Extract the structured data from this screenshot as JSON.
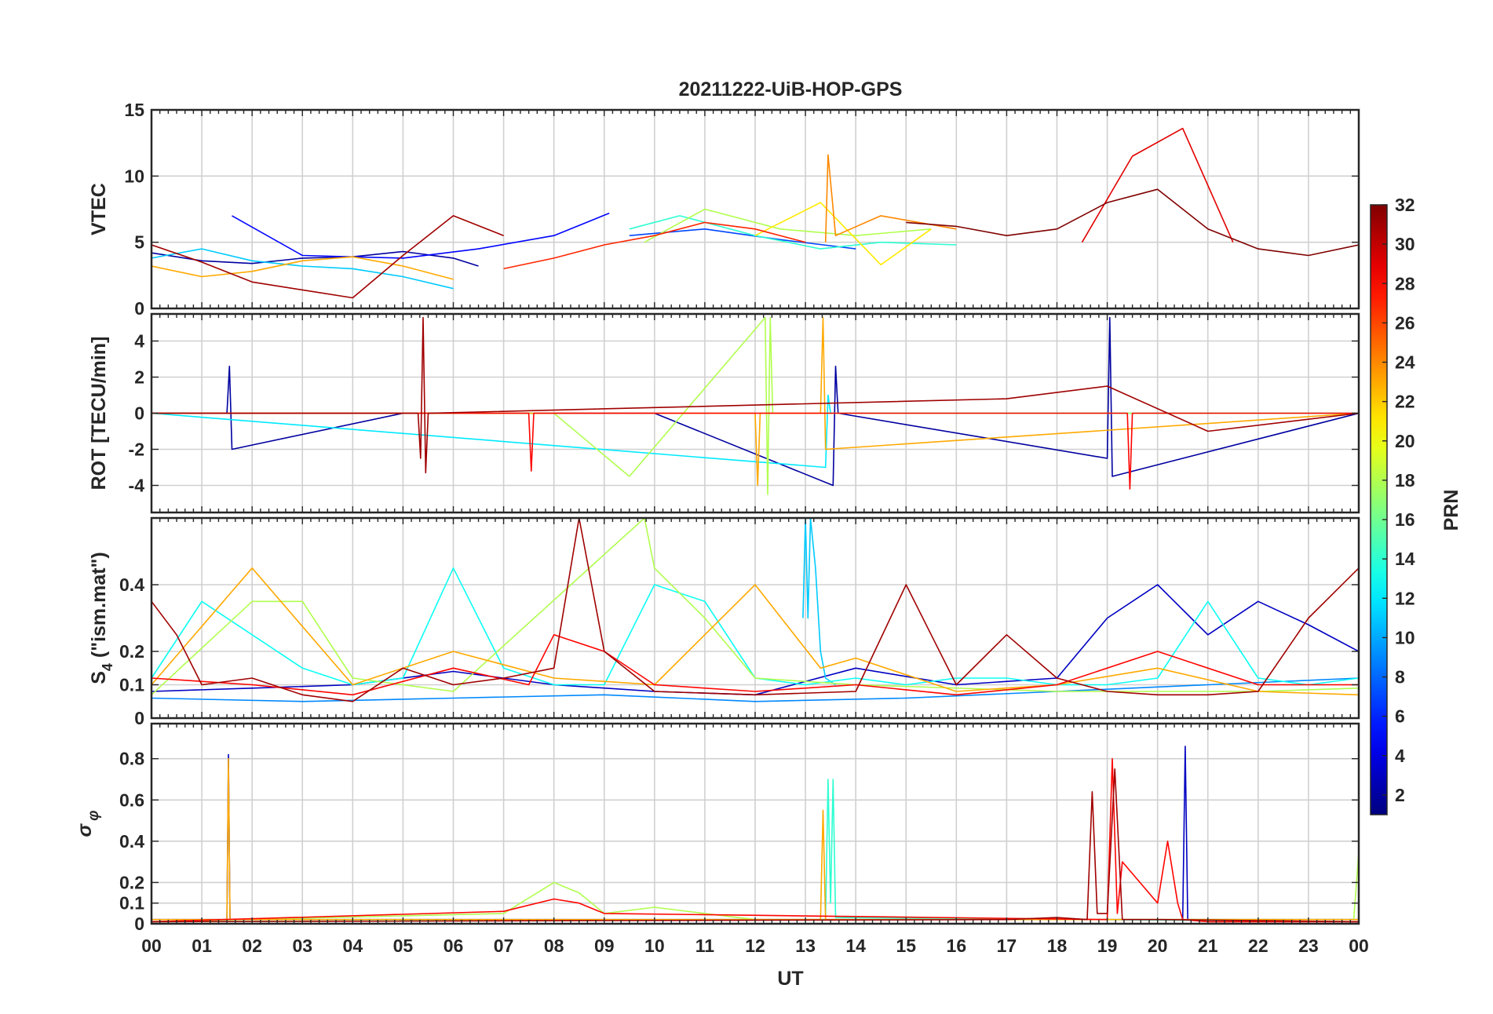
{
  "figure_title": "20211222-UiB-HOP-GPS",
  "x_axis": {
    "label": "UT",
    "range": [
      0,
      24
    ],
    "ticks": [
      0,
      1,
      2,
      3,
      4,
      5,
      6,
      7,
      8,
      9,
      10,
      11,
      12,
      13,
      14,
      15,
      16,
      17,
      18,
      19,
      20,
      21,
      22,
      23,
      24
    ],
    "tick_labels": [
      "00",
      "01",
      "02",
      "03",
      "04",
      "05",
      "06",
      "07",
      "08",
      "09",
      "10",
      "11",
      "12",
      "13",
      "14",
      "15",
      "16",
      "17",
      "18",
      "19",
      "20",
      "21",
      "22",
      "23",
      "00"
    ]
  },
  "colorbar": {
    "label": "PRN",
    "range": [
      1,
      32
    ],
    "ticks": [
      2,
      4,
      6,
      8,
      10,
      12,
      14,
      16,
      18,
      20,
      22,
      24,
      26,
      28,
      30,
      32
    ],
    "tick_labels": [
      "2",
      "4",
      "6",
      "8",
      "10",
      "12",
      "14",
      "16",
      "18",
      "20",
      "22",
      "24",
      "26",
      "28",
      "30",
      "32"
    ],
    "colormap": "jet"
  },
  "chart_data": [
    {
      "type": "line",
      "id": "vtec",
      "ylabel": "VTEC",
      "ylim": [
        0,
        15
      ],
      "yticks": [
        0,
        5,
        10,
        15
      ],
      "ytick_labels": [
        "0",
        "5",
        "10",
        "15"
      ],
      "grid": true,
      "series": [
        {
          "name": "PRN 2",
          "prn": 2,
          "x": [
            0,
            1,
            2,
            3,
            4,
            5,
            6,
            6.5
          ],
          "y": [
            4.2,
            3.6,
            3.4,
            3.8,
            3.9,
            4.3,
            3.8,
            3.2
          ]
        },
        {
          "name": "PRN 5",
          "prn": 5,
          "x": [
            1.6,
            3,
            5,
            6.5,
            8,
            9.1
          ],
          "y": [
            7,
            4,
            3.8,
            4.5,
            5.5,
            7.2
          ]
        },
        {
          "name": "PRN 7",
          "prn": 7,
          "x": [
            9.5,
            11,
            12.5,
            14
          ],
          "y": [
            5.5,
            6,
            5.2,
            4.5
          ]
        },
        {
          "name": "PRN 11",
          "prn": 11,
          "x": [
            0,
            1,
            2,
            3,
            4,
            5,
            6
          ],
          "y": [
            3.8,
            4.5,
            3.6,
            3.2,
            3,
            2.4,
            1.5
          ]
        },
        {
          "name": "PRN 14",
          "prn": 14,
          "x": [
            9.5,
            10.5,
            12,
            13.3,
            14.5,
            16
          ],
          "y": [
            6,
            7,
            5.5,
            4.5,
            5,
            4.8
          ]
        },
        {
          "name": "PRN 18",
          "prn": 18,
          "x": [
            9.8,
            11,
            12.5,
            14,
            15.5
          ],
          "y": [
            5,
            7.5,
            6,
            5.5,
            6
          ]
        },
        {
          "name": "PRN 21",
          "prn": 21,
          "x": [
            12,
            13.3,
            14.5,
            15.5
          ],
          "y": [
            5.5,
            8,
            3.3,
            6
          ]
        },
        {
          "name": "PRN 23",
          "prn": 23,
          "x": [
            0,
            1,
            2,
            3,
            4,
            5,
            6
          ],
          "y": [
            3.2,
            2.4,
            2.8,
            3.6,
            3.9,
            3.2,
            2.2
          ]
        },
        {
          "name": "PRN 24",
          "prn": 24,
          "x": [
            13.4,
            13.45,
            13.6,
            14.5,
            16
          ],
          "y": [
            5,
            11.6,
            5.5,
            7,
            6
          ]
        },
        {
          "name": "PRN 27",
          "prn": 27,
          "x": [
            7,
            8,
            9,
            10,
            11,
            12,
            13
          ],
          "y": [
            3,
            3.8,
            4.8,
            5.5,
            6.5,
            6,
            5
          ]
        },
        {
          "name": "PRN 29",
          "prn": 29,
          "x": [
            18.5,
            19.5,
            20.5,
            21.5
          ],
          "y": [
            5,
            11.5,
            13.6,
            5
          ]
        },
        {
          "name": "PRN 31",
          "prn": 31,
          "x": [
            0,
            1,
            2,
            3,
            4,
            5,
            6,
            7
          ],
          "y": [
            4.8,
            3.5,
            2,
            1.4,
            0.8,
            4,
            7,
            5.5
          ]
        },
        {
          "name": "PRN 32",
          "prn": 32,
          "x": [
            15,
            16,
            17,
            18,
            19,
            20,
            21,
            22,
            23,
            24
          ],
          "y": [
            6.5,
            6.2,
            5.5,
            6,
            8,
            9,
            6,
            4.5,
            4,
            4.8
          ]
        }
      ]
    },
    {
      "type": "line",
      "id": "rot",
      "ylabel": "ROT [TECU/min]",
      "ylim": [
        -5.5,
        5.5
      ],
      "yticks": [
        -4,
        -2,
        0,
        2,
        4
      ],
      "ytick_labels": [
        "-4",
        "-2",
        "0",
        "2",
        "4"
      ],
      "grid": true,
      "series": [
        {
          "name": "PRN 2",
          "prn": 2,
          "x": [
            0,
            1.5,
            1.55,
            1.6,
            5,
            10,
            13.55,
            13.6,
            13.65,
            19,
            19.05,
            19.1,
            24
          ],
          "y": [
            0,
            0,
            2.6,
            -2,
            0,
            0,
            -4,
            2.6,
            0,
            -2.5,
            5.3,
            -3.5,
            0
          ]
        },
        {
          "name": "PRN 12",
          "prn": 12,
          "x": [
            0,
            13.4,
            13.45,
            13.5,
            18,
            24
          ],
          "y": [
            0,
            -3,
            1,
            0,
            0,
            0
          ]
        },
        {
          "name": "PRN 18",
          "prn": 18,
          "x": [
            0,
            8,
            9.5,
            12.2,
            12.25,
            12.3,
            12.35,
            24
          ],
          "y": [
            0,
            0,
            -3.5,
            5.3,
            -4.5,
            5.3,
            0,
            0
          ]
        },
        {
          "name": "PRN 23",
          "prn": 23,
          "x": [
            0,
            12,
            12.05,
            12.1,
            13.3,
            13.35,
            13.4,
            24
          ],
          "y": [
            0,
            0,
            -4,
            0,
            0,
            5.3,
            -2,
            0
          ]
        },
        {
          "name": "PRN 28",
          "prn": 28,
          "x": [
            0,
            7.5,
            7.55,
            7.6,
            19.4,
            19.45,
            19.5,
            24
          ],
          "y": [
            0,
            0,
            -3.2,
            0,
            0,
            -4.2,
            0,
            0
          ]
        },
        {
          "name": "PRN 31",
          "prn": 31,
          "x": [
            0,
            5.3,
            5.35,
            5.4,
            5.45,
            5.5,
            17,
            19,
            21,
            24
          ],
          "y": [
            0,
            0,
            -2.5,
            5.3,
            -3.3,
            0,
            0.8,
            1.5,
            -1,
            0
          ]
        }
      ]
    },
    {
      "type": "line",
      "id": "s4",
      "ylabel": "S4 (\"ism.mat\")",
      "ylabel_main": "S",
      "ylabel_sub": "4",
      "ylabel_rest": " (\"ism.mat\")",
      "ylim": [
        0,
        0.6
      ],
      "yticks": [
        0,
        0.1,
        0.2,
        0.4
      ],
      "ytick_labels": [
        "0",
        "0.1",
        "0.2",
        "0.4"
      ],
      "grid": true,
      "series": [
        {
          "name": "PRN 3",
          "prn": 3,
          "x": [
            0,
            2,
            4,
            6,
            8,
            10,
            12,
            14,
            16,
            18,
            19,
            20,
            21,
            22,
            23,
            24
          ],
          "y": [
            0.08,
            0.09,
            0.1,
            0.14,
            0.1,
            0.08,
            0.07,
            0.15,
            0.1,
            0.12,
            0.3,
            0.4,
            0.25,
            0.35,
            0.28,
            0.2
          ]
        },
        {
          "name": "PRN 9",
          "prn": 9,
          "x": [
            0,
            3,
            6,
            9,
            12,
            15,
            18,
            21,
            24
          ],
          "y": [
            0.06,
            0.05,
            0.06,
            0.07,
            0.05,
            0.06,
            0.08,
            0.1,
            0.12
          ]
        },
        {
          "name": "PRN 11",
          "prn": 11,
          "x": [
            12.95,
            13,
            13.05,
            13.1,
            13.2,
            13.3,
            13.4,
            13.6
          ],
          "y": [
            0.3,
            0.6,
            0.3,
            0.6,
            0.45,
            0.2,
            0.12,
            0.1
          ]
        },
        {
          "name": "PRN 13",
          "prn": 13,
          "x": [
            0,
            1,
            2,
            3,
            4,
            5,
            6,
            7,
            8,
            9,
            10,
            11,
            12,
            13,
            14,
            15,
            16,
            17,
            18,
            19,
            20,
            21,
            22,
            23,
            24
          ],
          "y": [
            0.12,
            0.35,
            0.25,
            0.15,
            0.1,
            0.12,
            0.45,
            0.15,
            0.1,
            0.1,
            0.4,
            0.35,
            0.12,
            0.1,
            0.12,
            0.1,
            0.12,
            0.12,
            0.1,
            0.1,
            0.12,
            0.35,
            0.12,
            0.1,
            0.12
          ]
        },
        {
          "name": "PRN 18",
          "prn": 18,
          "x": [
            0,
            2,
            3,
            4,
            6,
            9.8,
            10,
            11,
            12,
            14,
            18,
            22,
            24
          ],
          "y": [
            0.07,
            0.35,
            0.35,
            0.12,
            0.08,
            0.6,
            0.45,
            0.3,
            0.12,
            0.1,
            0.08,
            0.08,
            0.09
          ]
        },
        {
          "name": "PRN 23",
          "prn": 23,
          "x": [
            0,
            2,
            4,
            6,
            8,
            10,
            12,
            13.3,
            14,
            16,
            18,
            20,
            22,
            24
          ],
          "y": [
            0.1,
            0.45,
            0.1,
            0.2,
            0.12,
            0.1,
            0.4,
            0.15,
            0.18,
            0.08,
            0.1,
            0.15,
            0.08,
            0.07
          ]
        },
        {
          "name": "PRN 28",
          "prn": 28,
          "x": [
            0,
            2,
            4,
            6,
            7.5,
            8,
            9,
            10,
            12,
            14,
            16,
            18,
            20,
            22,
            24
          ],
          "y": [
            0.12,
            0.1,
            0.07,
            0.15,
            0.1,
            0.25,
            0.2,
            0.1,
            0.08,
            0.1,
            0.07,
            0.1,
            0.2,
            0.1,
            0.1
          ]
        },
        {
          "name": "PRN 31",
          "prn": 31,
          "x": [
            0,
            0.5,
            1,
            2,
            3,
            4,
            5,
            6,
            7,
            8,
            8.5,
            9,
            10,
            12,
            14,
            15,
            15.5,
            16,
            17,
            18,
            19,
            20,
            21,
            22,
            23,
            24
          ],
          "y": [
            0.35,
            0.25,
            0.1,
            0.12,
            0.07,
            0.05,
            0.15,
            0.1,
            0.12,
            0.15,
            0.6,
            0.2,
            0.08,
            0.07,
            0.08,
            0.4,
            0.25,
            0.1,
            0.25,
            0.12,
            0.08,
            0.07,
            0.07,
            0.08,
            0.3,
            0.45
          ]
        }
      ]
    },
    {
      "type": "line",
      "id": "sigma_phi",
      "ylabel": "σ φ",
      "ylabel_main": "σ",
      "ylabel_sub": "φ",
      "ylim": [
        0,
        0.97
      ],
      "yticks": [
        0,
        0.1,
        0.2,
        0.4,
        0.6,
        0.8
      ],
      "ytick_labels": [
        "0",
        "0.1",
        "0.2",
        "0.4",
        "0.6",
        "0.8"
      ],
      "grid": true,
      "series": [
        {
          "name": "PRN 3",
          "prn": 3,
          "x": [
            0,
            1.5,
            1.53,
            1.56,
            20.5,
            20.55,
            20.6,
            24
          ],
          "y": [
            0.02,
            0.02,
            0.82,
            0.02,
            0.02,
            0.86,
            0.02,
            0.02
          ]
        },
        {
          "name": "PRN 14",
          "prn": 14,
          "x": [
            0,
            13.4,
            13.45,
            13.5,
            13.55,
            13.6,
            24
          ],
          "y": [
            0.01,
            0.02,
            0.7,
            0.1,
            0.7,
            0.03,
            0.01
          ]
        },
        {
          "name": "PRN 18",
          "prn": 18,
          "x": [
            0,
            7,
            8,
            8.5,
            9,
            10,
            11,
            12,
            18,
            23.9,
            24
          ],
          "y": [
            0.01,
            0.05,
            0.2,
            0.15,
            0.05,
            0.08,
            0.05,
            0.02,
            0.02,
            0.02,
            0.35
          ]
        },
        {
          "name": "PRN 23",
          "prn": 23,
          "x": [
            0,
            1.5,
            1.53,
            1.56,
            13.3,
            13.35,
            13.4,
            24
          ],
          "y": [
            0.02,
            0.02,
            0.8,
            0.02,
            0.02,
            0.55,
            0.02,
            0.02
          ]
        },
        {
          "name": "PRN 28",
          "prn": 28,
          "x": [
            0,
            7,
            8,
            8.5,
            9,
            19,
            19.1,
            19.2,
            19.3,
            20,
            20.2,
            20.4,
            20.5,
            21,
            24
          ],
          "y": [
            0.01,
            0.06,
            0.12,
            0.1,
            0.05,
            0.02,
            0.8,
            0.05,
            0.3,
            0.1,
            0.4,
            0.1,
            0.02,
            0.01,
            0.01
          ]
        },
        {
          "name": "PRN 31",
          "prn": 31,
          "x": [
            0,
            17,
            18,
            18.6,
            18.7,
            18.8,
            19,
            19.15,
            19.3,
            20,
            24
          ],
          "y": [
            0.01,
            0.02,
            0.03,
            0.02,
            0.64,
            0.05,
            0.05,
            0.75,
            0.02,
            0.02,
            0.01
          ]
        }
      ]
    }
  ]
}
